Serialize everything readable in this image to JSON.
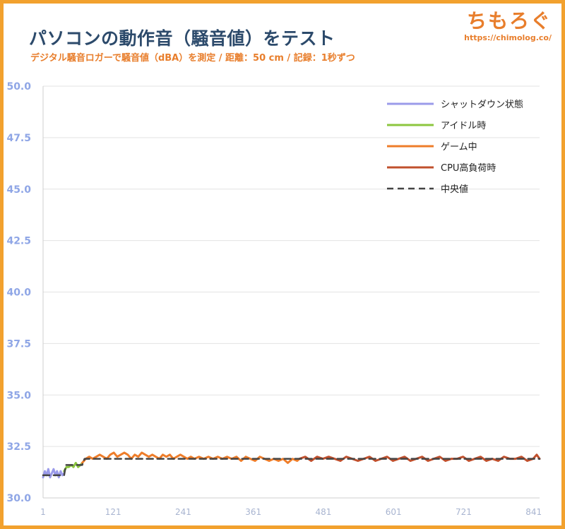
{
  "header": {
    "title": "パソコンの動作音（騒音値）をテスト",
    "subtitle": "デジタル騒音ロガーで騒音値（dBA）を測定 / 距離：50 cm / 記録：1秒ずつ",
    "brand_name": "ちもろぐ",
    "brand_url": "https://chimolog.co/"
  },
  "chart_data": {
    "type": "line",
    "title": "パソコンの動作音（騒音値）をテスト",
    "subtitle": "デジタル騒音ロガーで騒音値（dBA）を測定 / 距離：50 cm / 記録：1秒ずつ",
    "xlabel": "",
    "ylabel": "",
    "xlim": [
      1,
      851
    ],
    "ylim": [
      30.0,
      50.0
    ],
    "x_ticks": [
      1,
      121,
      241,
      361,
      481,
      601,
      721,
      841
    ],
    "y_ticks": [
      30.0,
      32.5,
      35.0,
      37.5,
      40.0,
      42.5,
      45.0,
      47.5,
      50.0
    ],
    "y_tick_labels": [
      "30.0",
      "32.5",
      "35.0",
      "37.5",
      "40.0",
      "42.5",
      "45.0",
      "47.5",
      "50.0"
    ],
    "grid": "horizontal",
    "legend_position": "top-right",
    "series": [
      {
        "name": "シャットダウン状態",
        "color": "#9b9bea",
        "x": [
          1,
          4,
          7,
          10,
          13,
          16,
          19,
          22,
          25,
          28,
          31,
          34,
          37
        ],
        "values": [
          31.0,
          31.3,
          31.1,
          31.4,
          31.0,
          31.2,
          31.4,
          31.1,
          31.3,
          31.0,
          31.3,
          31.1,
          31.2
        ]
      },
      {
        "name": "アイドル時",
        "color": "#8cc63f",
        "x": [
          37,
          41,
          45,
          49,
          53,
          57,
          61,
          65,
          68
        ],
        "values": [
          31.3,
          31.5,
          31.5,
          31.6,
          31.5,
          31.7,
          31.5,
          31.6,
          31.7
        ]
      },
      {
        "name": "ゲーム中",
        "color": "#ee7d2a",
        "x": [
          68,
          74,
          80,
          86,
          92,
          98,
          104,
          110,
          116,
          122,
          128,
          134,
          140,
          146,
          152,
          158,
          164,
          170,
          176,
          182,
          188,
          194,
          200,
          206,
          212,
          218,
          224,
          230,
          236,
          242,
          248,
          254,
          260,
          268,
          276,
          284,
          292,
          300,
          308,
          316,
          324,
          332,
          340,
          348,
          356,
          364,
          372,
          380,
          388,
          396,
          404,
          412,
          420,
          428,
          436,
          440
        ],
        "values": [
          31.7,
          31.9,
          32.0,
          31.9,
          32.0,
          32.1,
          32.0,
          31.9,
          32.1,
          32.2,
          32.0,
          32.1,
          32.2,
          32.1,
          31.9,
          32.1,
          32.0,
          32.2,
          32.1,
          32.0,
          32.1,
          32.0,
          31.9,
          32.1,
          32.0,
          32.1,
          31.9,
          32.0,
          32.1,
          32.0,
          31.9,
          32.0,
          31.9,
          32.0,
          31.9,
          32.0,
          31.9,
          32.0,
          31.9,
          32.0,
          31.9,
          32.0,
          31.8,
          32.0,
          31.9,
          31.8,
          32.0,
          31.9,
          31.8,
          31.9,
          31.8,
          31.9,
          31.7,
          31.9,
          31.8,
          31.9
        ]
      },
      {
        "name": "CPU高負荷時",
        "color": "#c0502d",
        "x": [
          440,
          450,
          460,
          470,
          480,
          490,
          500,
          510,
          520,
          530,
          540,
          550,
          560,
          570,
          580,
          590,
          600,
          610,
          620,
          630,
          640,
          650,
          660,
          670,
          680,
          690,
          700,
          710,
          720,
          730,
          740,
          750,
          760,
          770,
          780,
          790,
          800,
          810,
          820,
          830,
          840,
          846,
          851
        ],
        "values": [
          31.9,
          32.0,
          31.8,
          32.0,
          31.9,
          32.0,
          31.9,
          31.8,
          32.0,
          31.9,
          31.8,
          31.9,
          32.0,
          31.8,
          31.9,
          32.0,
          31.8,
          31.9,
          32.0,
          31.8,
          31.9,
          32.0,
          31.8,
          31.9,
          32.0,
          31.8,
          31.9,
          31.9,
          32.0,
          31.8,
          31.9,
          32.0,
          31.8,
          31.9,
          31.8,
          32.0,
          31.9,
          31.9,
          32.0,
          31.8,
          31.9,
          32.1,
          31.9
        ]
      },
      {
        "name": "中央値",
        "color": "#444444",
        "dashed": true,
        "x": [
          1,
          37,
          40,
          68,
          72,
          851
        ],
        "values": [
          31.1,
          31.1,
          31.6,
          31.6,
          31.9,
          31.9
        ]
      }
    ]
  }
}
